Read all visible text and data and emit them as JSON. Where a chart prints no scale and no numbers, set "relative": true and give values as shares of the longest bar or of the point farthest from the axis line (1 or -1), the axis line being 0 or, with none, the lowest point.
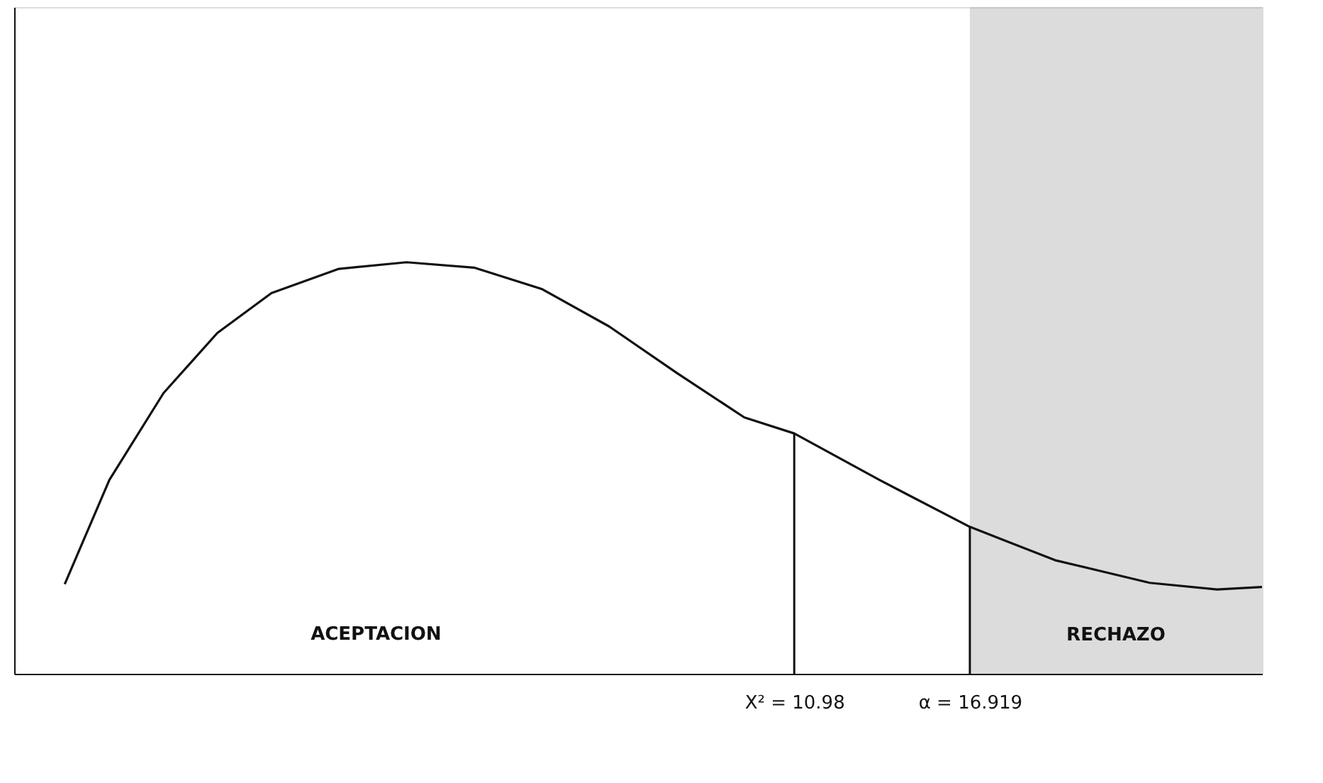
{
  "chart_data": {
    "type": "line",
    "relative": true,
    "tick_labels": "x",
    "marker": "none",
    "line_style": "solid",
    "xlim": [
      -15.4,
      26.8
    ],
    "xticks": [
      {
        "value": 10.98,
        "label": "X² = 10.98"
      },
      {
        "value": 16.919,
        "label": "α = 16.919"
      }
    ],
    "x": [
      -13.69,
      -12.18,
      -10.35,
      -8.53,
      -6.7,
      -4.42,
      -2.13,
      0.15,
      2.44,
      4.72,
      7.01,
      9.29,
      10.98,
      13.86,
      16.919,
      19.8,
      23.0,
      25.28,
      26.8
    ],
    "series": [
      {
        "color": "#111111",
        "values": [
          0.218,
          0.471,
          0.682,
          0.828,
          0.925,
          0.984,
          1.0,
          0.987,
          0.935,
          0.844,
          0.731,
          0.623,
          0.584,
          0.471,
          0.357,
          0.276,
          0.221,
          0.205,
          0.211
        ]
      }
    ],
    "ref_lines": [
      {
        "axis": "x",
        "value": 10.98
      },
      {
        "axis": "x",
        "value": 16.919
      }
    ],
    "bands": [
      {
        "axis": "x",
        "from": 16.919,
        "to": 26.8,
        "label": "RECHAZO",
        "color": "#9a9a9a"
      }
    ],
    "annotations": [
      "ACEPTACION"
    ]
  }
}
